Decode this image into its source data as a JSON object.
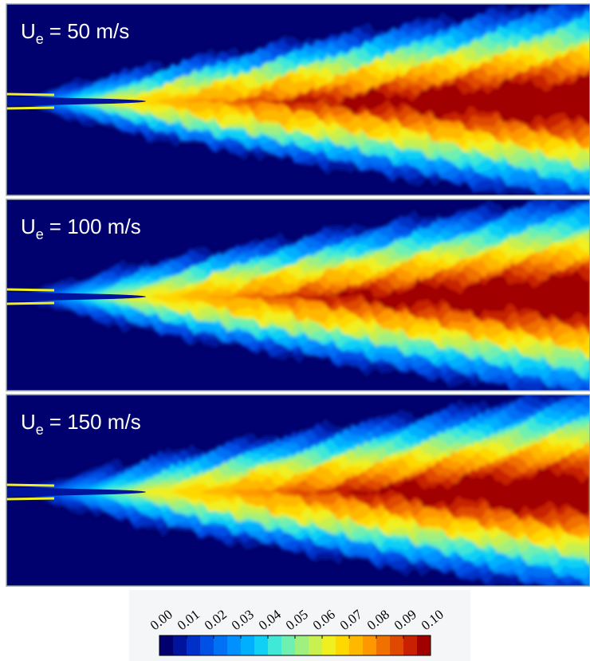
{
  "chart_data": {
    "type": "contour",
    "panels": [
      {
        "symbol": "U",
        "subscript": "e",
        "text": "= 50 m/s"
      },
      {
        "symbol": "U",
        "subscript": "e",
        "text": "= 100 m/s"
      },
      {
        "symbol": "U",
        "subscript": "e",
        "text": "= 150 m/s"
      }
    ],
    "clim": [
      0,
      0.1
    ],
    "colorbar_ticks": [
      {
        "value": 0,
        "label": "0.00"
      },
      {
        "value": 0.01,
        "label": "0.01"
      },
      {
        "value": 0.02,
        "label": "0.02"
      },
      {
        "value": 0.03,
        "label": "0.03"
      },
      {
        "value": 0.04,
        "label": "0.04"
      },
      {
        "value": 0.05,
        "label": "0.05"
      },
      {
        "value": 0.06,
        "label": "0.06"
      },
      {
        "value": 0.07,
        "label": "0.07"
      },
      {
        "value": 0.08,
        "label": "0.08"
      },
      {
        "value": 0.09,
        "label": "0.09"
      },
      {
        "value": 0.1,
        "label": "0.10"
      }
    ],
    "colormap": [
      "#00006e",
      "#00139c",
      "#0030c8",
      "#0050e6",
      "#0070f5",
      "#0090ff",
      "#00b0ff",
      "#10d0f5",
      "#40e8d8",
      "#70f0b0",
      "#a0f080",
      "#c8f050",
      "#f0f020",
      "#ffd800",
      "#ffb800",
      "#ff9800",
      "#f07000",
      "#e04800",
      "#c82000",
      "#a00000"
    ]
  }
}
